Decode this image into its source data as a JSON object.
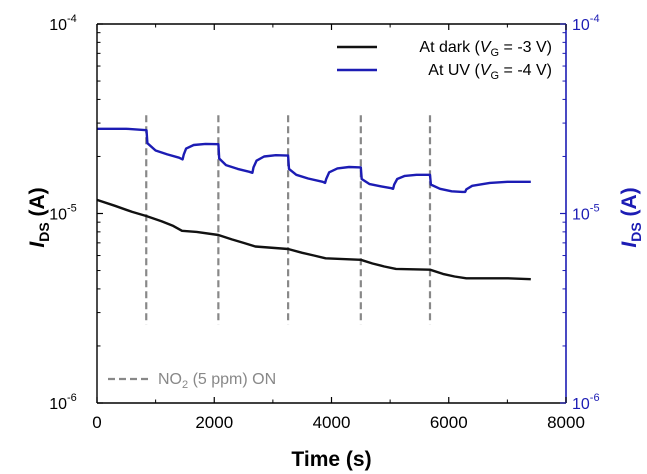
{
  "chart_data": {
    "type": "line",
    "title": "",
    "xlabel": "Time (s)",
    "ylabel_left": {
      "base": "I",
      "sub": "DS",
      "unit": " (A)"
    },
    "ylabel_right": {
      "base": "I",
      "sub": "DS",
      "unit": " (A)"
    },
    "y_scale": "log",
    "xlim": [
      0,
      8000
    ],
    "ylim": [
      1e-06,
      0.0001
    ],
    "x_ticks": [
      {
        "value": 0,
        "label": "0"
      },
      {
        "value": 2000,
        "label": "2000"
      },
      {
        "value": 4000,
        "label": "4000"
      },
      {
        "value": 6000,
        "label": "6000"
      },
      {
        "value": 8000,
        "label": "8000"
      }
    ],
    "y_ticks": [
      {
        "value": 1e-06,
        "base": "10",
        "exp": "-6"
      },
      {
        "value": 1e-05,
        "base": "10",
        "exp": "-5"
      },
      {
        "value": 0.0001,
        "base": "10",
        "exp": "-4"
      }
    ],
    "colors": {
      "dark": "#111111",
      "uv": "#1c1cb4",
      "gas": "#888888",
      "right_axis": "#1c1cb4",
      "left_axis": "#000000"
    },
    "legend_position": "top-right",
    "legend": [
      {
        "key": "dark",
        "prefix": "At dark (",
        "var": "V",
        "sub": "G",
        "suffix": " = -3 V)"
      },
      {
        "key": "uv",
        "prefix": "At UV (",
        "var": "V",
        "sub": "G",
        "suffix": " = -4 V)"
      }
    ],
    "gas_legend": {
      "prefix": "NO",
      "sub": "2",
      "suffix": " (5 ppm) ON"
    },
    "gas_on_times": [
      840,
      2070,
      3260,
      4500,
      5680
    ],
    "gas_line_range": [
      2.6e-06,
      3.3e-05
    ],
    "series": [
      {
        "name": "At dark (VG = -3 V)",
        "key": "dark",
        "x": [
          0,
          300,
          600,
          840,
          1100,
          1300,
          1450,
          1700,
          2070,
          2300,
          2500,
          2700,
          3260,
          3500,
          3700,
          3900,
          4500,
          4700,
          4900,
          5100,
          5680,
          5900,
          6100,
          6300,
          7000,
          7400
        ],
        "y": [
          1.18e-05,
          1.1e-05,
          1.02e-05,
          9.7e-06,
          9.1e-06,
          8.6e-06,
          8.1e-06,
          8e-06,
          7.7e-06,
          7.3e-06,
          7e-06,
          6.7e-06,
          6.5e-06,
          6.2e-06,
          6e-06,
          5.8e-06,
          5.7e-06,
          5.45e-06,
          5.25e-06,
          5.1e-06,
          5.05e-06,
          4.8e-06,
          4.65e-06,
          4.55e-06,
          4.55e-06,
          4.5e-06
        ]
      },
      {
        "name": "At UV (VG = -4 V)",
        "key": "uv",
        "x": [
          0,
          500,
          845,
          860,
          1000,
          1200,
          1400,
          1460,
          1480,
          1520,
          1650,
          1850,
          2070,
          2085,
          2200,
          2400,
          2600,
          2650,
          2670,
          2720,
          2850,
          3050,
          3260,
          3275,
          3400,
          3600,
          3850,
          3890,
          3910,
          3960,
          4100,
          4300,
          4500,
          4515,
          4650,
          4850,
          5020,
          5050,
          5070,
          5120,
          5250,
          5450,
          5680,
          5695,
          5850,
          6050,
          6230,
          6280,
          6300,
          6400,
          6700,
          7000,
          7400
        ],
        "y": [
          2.8e-05,
          2.8e-05,
          2.75e-05,
          2.35e-05,
          2.15e-05,
          2.05e-05,
          1.97e-05,
          1.93e-05,
          2.05e-05,
          2.2e-05,
          2.3e-05,
          2.33e-05,
          2.32e-05,
          1.95e-05,
          1.8e-05,
          1.72e-05,
          1.66e-05,
          1.64e-05,
          1.75e-05,
          1.9e-05,
          2e-05,
          2.03e-05,
          2.02e-05,
          1.72e-05,
          1.6e-05,
          1.53e-05,
          1.47e-05,
          1.45e-05,
          1.52e-05,
          1.65e-05,
          1.73e-05,
          1.76e-05,
          1.75e-05,
          1.52e-05,
          1.43e-05,
          1.39e-05,
          1.36e-05,
          1.35e-05,
          1.42e-05,
          1.52e-05,
          1.58e-05,
          1.6e-05,
          1.6e-05,
          1.42e-05,
          1.35e-05,
          1.31e-05,
          1.3e-05,
          1.3e-05,
          1.34e-05,
          1.4e-05,
          1.45e-05,
          1.47e-05,
          1.47e-05
        ]
      }
    ]
  }
}
